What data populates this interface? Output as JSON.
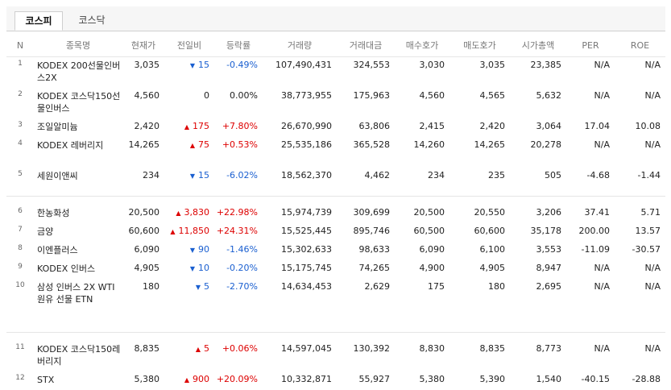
{
  "tabs": [
    "코스피",
    "코스닥"
  ],
  "columns": [
    "N",
    "종목명",
    "현재가",
    "전일비",
    "등락률",
    "거래량",
    "거래대금",
    "매수호가",
    "매도호가",
    "시가총액",
    "PER",
    "ROE"
  ],
  "group1": [
    {
      "n": "1",
      "name": "KODEX 200선물인버스2X",
      "price": "3,035",
      "dir": "down",
      "change": "15",
      "rate": "-0.49%",
      "volume": "107,490,431",
      "amount": "324,553",
      "bid": "3,030",
      "ask": "3,035",
      "cap": "23,385",
      "per": "N/A",
      "roe": "N/A"
    },
    {
      "n": "2",
      "name": "KODEX 코스닥150선물인버스",
      "price": "4,560",
      "dir": "none",
      "change": "0",
      "rate": "0.00%",
      "volume": "38,773,955",
      "amount": "175,963",
      "bid": "4,560",
      "ask": "4,565",
      "cap": "5,632",
      "per": "N/A",
      "roe": "N/A"
    },
    {
      "n": "3",
      "name": "조일알미늄",
      "price": "2,420",
      "dir": "up",
      "change": "175",
      "rate": "+7.80%",
      "volume": "26,670,990",
      "amount": "63,806",
      "bid": "2,415",
      "ask": "2,420",
      "cap": "3,064",
      "per": "17.04",
      "roe": "10.08"
    },
    {
      "n": "4",
      "name": "KODEX 레버리지",
      "price": "14,265",
      "dir": "up",
      "change": "75",
      "rate": "+0.53%",
      "volume": "25,535,186",
      "amount": "365,528",
      "bid": "14,260",
      "ask": "14,265",
      "cap": "20,278",
      "per": "N/A",
      "roe": "N/A"
    },
    {
      "n": "5",
      "name": "세원이앤씨",
      "price": "234",
      "dir": "down",
      "change": "15",
      "rate": "-6.02%",
      "volume": "18,562,370",
      "amount": "4,462",
      "bid": "234",
      "ask": "235",
      "cap": "505",
      "per": "-4.68",
      "roe": "-1.44"
    }
  ],
  "group2": [
    {
      "n": "6",
      "name": "한농화성",
      "price": "20,500",
      "dir": "up",
      "change": "3,830",
      "rate": "+22.98%",
      "volume": "15,974,739",
      "amount": "309,699",
      "bid": "20,500",
      "ask": "20,550",
      "cap": "3,206",
      "per": "37.41",
      "roe": "5.71"
    },
    {
      "n": "7",
      "name": "금양",
      "price": "60,600",
      "dir": "up",
      "change": "11,850",
      "rate": "+24.31%",
      "volume": "15,525,445",
      "amount": "895,746",
      "bid": "60,500",
      "ask": "60,600",
      "cap": "35,178",
      "per": "200.00",
      "roe": "13.57"
    },
    {
      "n": "8",
      "name": "이엔플러스",
      "price": "6,090",
      "dir": "down",
      "change": "90",
      "rate": "-1.46%",
      "volume": "15,302,633",
      "amount": "98,633",
      "bid": "6,090",
      "ask": "6,100",
      "cap": "3,553",
      "per": "-11.09",
      "roe": "-30.57"
    },
    {
      "n": "9",
      "name": "KODEX 인버스",
      "price": "4,905",
      "dir": "down",
      "change": "10",
      "rate": "-0.20%",
      "volume": "15,175,745",
      "amount": "74,265",
      "bid": "4,900",
      "ask": "4,905",
      "cap": "8,947",
      "per": "N/A",
      "roe": "N/A"
    },
    {
      "n": "10",
      "name": "삼성 인버스 2X WTI원유 선물 ETN",
      "price": "180",
      "dir": "down",
      "change": "5",
      "rate": "-2.70%",
      "volume": "14,634,453",
      "amount": "2,629",
      "bid": "175",
      "ask": "180",
      "cap": "2,695",
      "per": "N/A",
      "roe": "N/A"
    }
  ],
  "group3": [
    {
      "n": "11",
      "name": "KODEX 코스닥150레버리지",
      "price": "8,835",
      "dir": "up",
      "change": "5",
      "rate": "+0.06%",
      "volume": "14,597,045",
      "amount": "130,392",
      "bid": "8,830",
      "ask": "8,835",
      "cap": "8,773",
      "per": "N/A",
      "roe": "N/A"
    },
    {
      "n": "12",
      "name": "STX",
      "price": "5,380",
      "dir": "up",
      "change": "900",
      "rate": "+20.09%",
      "volume": "10,332,871",
      "amount": "55,927",
      "bid": "5,380",
      "ask": "5,390",
      "cap": "1,540",
      "per": "-40.15",
      "roe": "-28.88"
    }
  ]
}
